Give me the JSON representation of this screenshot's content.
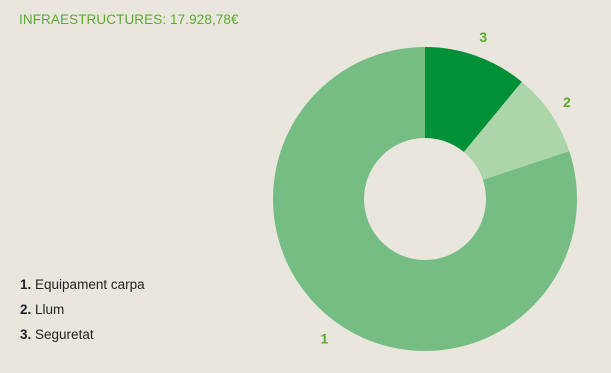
{
  "title": "INFRAESTRUCTURES: 17.928,78€",
  "colors": {
    "background": "#e8e6dd",
    "title": "#5cab2e",
    "label": "#5cab2e",
    "slice_1": "#76bd83",
    "slice_2": "#acd6aa",
    "slice_3": "#009038"
  },
  "legend": [
    {
      "num": "1.",
      "label": "Equipament carpa"
    },
    {
      "num": "2.",
      "label": "Llum"
    },
    {
      "num": "3.",
      "label": "Seguretat"
    }
  ],
  "chart_data": {
    "type": "pie",
    "title": "INFRAESTRUCTURES: 17.928,78€",
    "donut": true,
    "start": "top",
    "direction": "clockwise",
    "slice_order": [
      "3",
      "2",
      "1"
    ],
    "categories": [
      "Equipament carpa",
      "Llum",
      "Seguretat"
    ],
    "labels": [
      "1",
      "2",
      "3"
    ],
    "values": [
      80.1,
      8.9,
      11.0
    ],
    "unit": "%",
    "legend_position": "bottom-left"
  }
}
